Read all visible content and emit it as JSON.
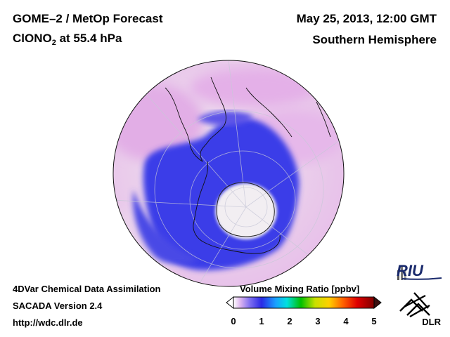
{
  "header": {
    "title_line1": "GOME–2 / MetOp Forecast",
    "species": "ClONO",
    "species_subscript": "2",
    "level": " at 55.4 hPa",
    "date": "May 25, 2013, 12:00 GMT",
    "hemisphere": "Southern Hemisphere"
  },
  "footer": {
    "line1": "4DVar Chemical Data Assimilation",
    "line2": "SACADA Version 2.4",
    "line3": "http://wdc.dlr.de"
  },
  "colorbar": {
    "title": "Volume Mixing Ratio [ppbv]",
    "ticks": [
      "0",
      "1",
      "2",
      "3",
      "4",
      "5"
    ],
    "range": [
      0,
      5
    ],
    "colors": [
      "#ffffff",
      "#cfa3ef",
      "#2a2ae6",
      "#1aa0ff",
      "#00e0e0",
      "#00c000",
      "#c8e000",
      "#ffd000",
      "#ff6000",
      "#e00000",
      "#800000"
    ]
  },
  "logos": {
    "riu": "RIU",
    "dlr": "DLR"
  },
  "map": {
    "projection": "orthographic-south-pole",
    "colors": {
      "low": "#efe4ee",
      "mid": "#e6b6ec",
      "high": "#3b3bec",
      "ocean_pink": "#f0d0ef",
      "coast": "#111111"
    }
  }
}
